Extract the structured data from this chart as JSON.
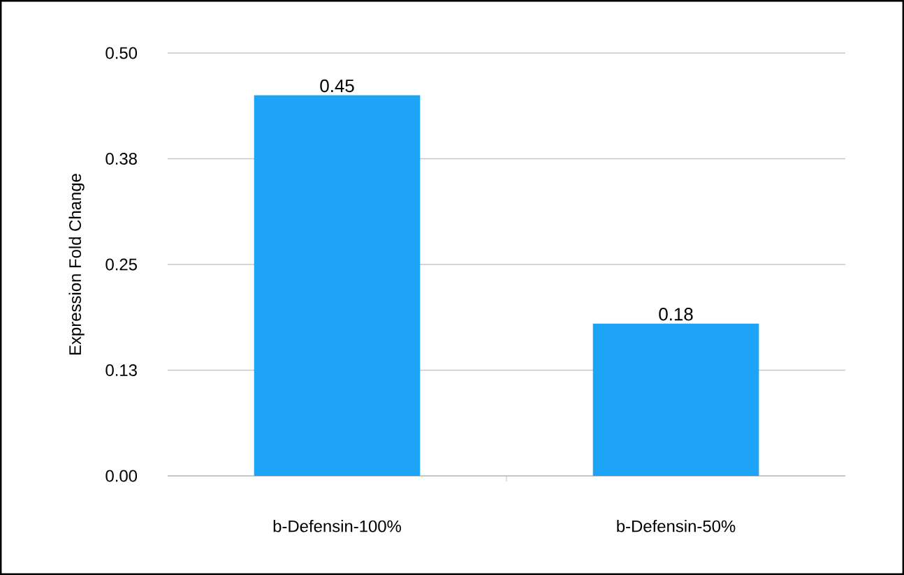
{
  "chart_data": {
    "type": "bar",
    "ylabel": "Expression Fold Change",
    "categories": [
      "b-Defensin-100%",
      "b-Defensin-50%"
    ],
    "values": [
      0.45,
      0.18
    ],
    "color": "#1ea4f6",
    "ylim": [
      0,
      0.5
    ],
    "yticks": [
      {
        "value": 0,
        "label": "0.00"
      },
      {
        "value": 0.125,
        "label": "0.13"
      },
      0.25,
      {
        "value": 0.375,
        "label": "0.38"
      },
      {
        "value": 0.5,
        "label": "0.50"
      }
    ],
    "grid": "y",
    "data_labels": true
  }
}
